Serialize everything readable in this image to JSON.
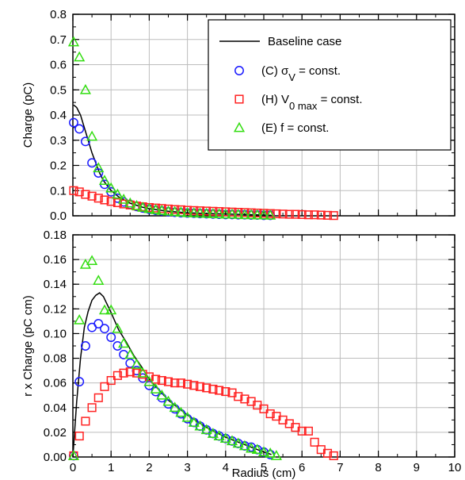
{
  "chart_data": [
    {
      "type": "scatter",
      "xlim": [
        0,
        10
      ],
      "ylim": [
        0,
        0.8
      ],
      "xlabel": "",
      "ylabel": "Charge (pC)",
      "x_ticks": [
        0,
        1,
        2,
        3,
        4,
        5,
        6,
        7,
        8,
        9,
        10
      ],
      "x_tick_labels": [
        "",
        "",
        "",
        "",
        "",
        "",
        "",
        "",
        "",
        "",
        ""
      ],
      "y_ticks": [
        0.0,
        0.1,
        0.2,
        0.3,
        0.4,
        0.5,
        0.6,
        0.7,
        0.8
      ],
      "y_tick_labels": [
        "0.0",
        "0.1",
        "0.2",
        "0.3",
        "0.4",
        "0.5",
        "0.6",
        "0.7",
        "0.8"
      ],
      "grid": true,
      "legend_position": "top-right",
      "legend": [
        {
          "marker": "line",
          "color": "#000000",
          "label": "Baseline case"
        },
        {
          "marker": "circle",
          "color": "#1a1aff",
          "label_prefix": "(C) σ",
          "label_sub": "V",
          "label_suffix": " = const."
        },
        {
          "marker": "square",
          "color": "#ff2222",
          "label_prefix": "(H) V",
          "label_sub": "0 max",
          "label_suffix": " = const."
        },
        {
          "marker": "triangle",
          "color": "#33dd11",
          "label_prefix": "(E) f = const.",
          "label_sub": "",
          "label_suffix": ""
        }
      ],
      "series": [
        {
          "name": "Baseline case",
          "marker": "line",
          "color": "#000000",
          "x": [
            0.02,
            0.1,
            0.2,
            0.3,
            0.4,
            0.5,
            0.6,
            0.7,
            0.8,
            1.0,
            1.2,
            1.5,
            1.8,
            2.0,
            2.5,
            3,
            3.5,
            4,
            4.5,
            5,
            5.2
          ],
          "y": [
            0.44,
            0.43,
            0.4,
            0.35,
            0.3,
            0.25,
            0.21,
            0.17,
            0.14,
            0.1,
            0.075,
            0.05,
            0.035,
            0.028,
            0.018,
            0.012,
            0.009,
            0.007,
            0.005,
            0.003,
            0.002
          ]
        },
        {
          "name": "(C) σV = const.",
          "marker": "circle",
          "color": "#1a1aff",
          "x": [
            0.02,
            0.17,
            0.33,
            0.5,
            0.67,
            0.83,
            1.0,
            1.17,
            1.33,
            1.5,
            1.67,
            1.83,
            2.0,
            2.17,
            2.33,
            2.5,
            2.67,
            2.83,
            3.0,
            3.17,
            3.33,
            3.5,
            3.67,
            3.83,
            4.0,
            4.17,
            4.33,
            4.5,
            4.67,
            4.83,
            5.0,
            5.17
          ],
          "y": [
            0.37,
            0.345,
            0.295,
            0.21,
            0.17,
            0.125,
            0.095,
            0.07,
            0.055,
            0.045,
            0.037,
            0.031,
            0.026,
            0.022,
            0.019,
            0.016,
            0.014,
            0.012,
            0.011,
            0.01,
            0.009,
            0.008,
            0.007,
            0.006,
            0.005,
            0.005,
            0.004,
            0.004,
            0.003,
            0.003,
            0.002,
            0.002
          ]
        },
        {
          "name": "(H) V0 max = const.",
          "marker": "square",
          "color": "#ff2222",
          "x": [
            0.02,
            0.17,
            0.33,
            0.5,
            0.67,
            0.83,
            1.0,
            1.17,
            1.33,
            1.5,
            1.67,
            1.83,
            2.0,
            2.17,
            2.33,
            2.5,
            2.67,
            2.83,
            3.0,
            3.17,
            3.33,
            3.5,
            3.67,
            3.83,
            4.0,
            4.17,
            4.33,
            4.5,
            4.67,
            4.83,
            5.0,
            5.17,
            5.33,
            5.5,
            5.67,
            5.83,
            6.0,
            6.17,
            6.33,
            6.5,
            6.67,
            6.83
          ],
          "y": [
            0.1,
            0.095,
            0.085,
            0.078,
            0.07,
            0.063,
            0.057,
            0.052,
            0.047,
            0.043,
            0.039,
            0.036,
            0.033,
            0.031,
            0.029,
            0.027,
            0.025,
            0.024,
            0.022,
            0.021,
            0.02,
            0.019,
            0.018,
            0.017,
            0.016,
            0.015,
            0.014,
            0.013,
            0.012,
            0.011,
            0.01,
            0.009,
            0.008,
            0.007,
            0.006,
            0.006,
            0.005,
            0.004,
            0.004,
            0.003,
            0.002,
            0.001
          ]
        },
        {
          "name": "(E) f = const.",
          "marker": "triangle",
          "color": "#33dd11",
          "x": [
            0.02,
            0.17,
            0.33,
            0.5,
            0.67,
            0.83,
            1.0,
            1.17,
            1.33,
            1.5,
            1.67,
            1.83,
            2.0,
            2.17,
            2.33,
            2.5,
            2.67,
            2.83,
            3.0,
            3.17,
            3.33,
            3.5,
            3.67,
            3.83,
            4.0,
            4.17,
            4.33,
            4.5,
            4.67,
            4.83,
            5.0,
            5.17
          ],
          "y": [
            0.69,
            0.63,
            0.5,
            0.315,
            0.19,
            0.14,
            0.11,
            0.085,
            0.065,
            0.05,
            0.04,
            0.033,
            0.028,
            0.024,
            0.021,
            0.018,
            0.016,
            0.014,
            0.012,
            0.011,
            0.01,
            0.009,
            0.008,
            0.007,
            0.006,
            0.006,
            0.005,
            0.004,
            0.004,
            0.003,
            0.003,
            0.002
          ]
        }
      ]
    },
    {
      "type": "scatter",
      "xlim": [
        0,
        10
      ],
      "ylim": [
        0,
        0.18
      ],
      "xlabel": "Radius (cm)",
      "ylabel": "r x Charge (pC cm)",
      "x_ticks": [
        0,
        1,
        2,
        3,
        4,
        5,
        6,
        7,
        8,
        9,
        10
      ],
      "x_tick_labels": [
        "0",
        "1",
        "2",
        "3",
        "4",
        "5",
        "6",
        "7",
        "8",
        "9",
        "10"
      ],
      "y_ticks": [
        0.0,
        0.02,
        0.04,
        0.06,
        0.08,
        0.1,
        0.12,
        0.14,
        0.16,
        0.18
      ],
      "y_tick_labels": [
        "0.00",
        "0.02",
        "0.04",
        "0.06",
        "0.08",
        "0.10",
        "0.12",
        "0.14",
        "0.16",
        "0.18"
      ],
      "grid": true,
      "series": [
        {
          "name": "Baseline case",
          "marker": "line",
          "color": "#000000",
          "x": [
            0,
            0.1,
            0.2,
            0.3,
            0.4,
            0.5,
            0.6,
            0.7,
            0.8,
            1.0,
            1.2,
            1.4,
            1.6,
            1.8,
            2.0,
            2.5,
            3.0,
            3.5,
            4.0,
            4.5,
            5.0,
            5.2
          ],
          "y": [
            0,
            0.045,
            0.08,
            0.105,
            0.118,
            0.127,
            0.131,
            0.133,
            0.13,
            0.117,
            0.103,
            0.093,
            0.082,
            0.073,
            0.063,
            0.046,
            0.034,
            0.024,
            0.016,
            0.01,
            0.004,
            0.002
          ]
        },
        {
          "name": "(C) σV = const.",
          "marker": "circle",
          "color": "#1a1aff",
          "x": [
            0.02,
            0.17,
            0.33,
            0.5,
            0.67,
            0.83,
            1.0,
            1.17,
            1.33,
            1.5,
            1.67,
            1.83,
            2.0,
            2.17,
            2.33,
            2.5,
            2.67,
            2.83,
            3.0,
            3.17,
            3.33,
            3.5,
            3.67,
            3.83,
            4.0,
            4.17,
            4.33,
            4.5,
            4.67,
            4.83,
            5.0,
            5.17
          ],
          "y": [
            0.001,
            0.061,
            0.09,
            0.105,
            0.108,
            0.104,
            0.097,
            0.09,
            0.083,
            0.076,
            0.07,
            0.064,
            0.058,
            0.053,
            0.048,
            0.043,
            0.039,
            0.035,
            0.031,
            0.028,
            0.025,
            0.022,
            0.019,
            0.017,
            0.015,
            0.013,
            0.011,
            0.009,
            0.008,
            0.006,
            0.004,
            0.002
          ]
        },
        {
          "name": "(H) V0 max = const.",
          "marker": "square",
          "color": "#ff2222",
          "x": [
            0.02,
            0.17,
            0.33,
            0.5,
            0.67,
            0.83,
            1.0,
            1.17,
            1.33,
            1.5,
            1.67,
            1.83,
            2.0,
            2.17,
            2.33,
            2.5,
            2.67,
            2.83,
            3.0,
            3.17,
            3.33,
            3.5,
            3.67,
            3.83,
            4.0,
            4.17,
            4.33,
            4.5,
            4.67,
            4.83,
            5.0,
            5.17,
            5.33,
            5.5,
            5.67,
            5.83,
            6.0,
            6.17,
            6.33,
            6.5,
            6.67,
            6.83
          ],
          "y": [
            0.001,
            0.017,
            0.029,
            0.04,
            0.048,
            0.057,
            0.062,
            0.066,
            0.068,
            0.069,
            0.068,
            0.067,
            0.065,
            0.063,
            0.062,
            0.061,
            0.06,
            0.06,
            0.059,
            0.058,
            0.057,
            0.056,
            0.055,
            0.054,
            0.053,
            0.052,
            0.049,
            0.047,
            0.045,
            0.042,
            0.039,
            0.035,
            0.033,
            0.03,
            0.027,
            0.024,
            0.021,
            0.021,
            0.012,
            0.006,
            0.003,
            0.001
          ]
        },
        {
          "name": "(E) f = const.",
          "marker": "triangle",
          "color": "#33dd11",
          "x": [
            0.02,
            0.17,
            0.33,
            0.5,
            0.67,
            0.83,
            1.0,
            1.17,
            1.33,
            1.5,
            1.67,
            1.83,
            2.0,
            2.17,
            2.33,
            2.5,
            2.67,
            2.83,
            3.0,
            3.17,
            3.33,
            3.5,
            3.67,
            3.83,
            4.0,
            4.17,
            4.33,
            4.5,
            4.67,
            4.83,
            5.0,
            5.17,
            5.33
          ],
          "y": [
            0.001,
            0.111,
            0.156,
            0.159,
            0.143,
            0.119,
            0.119,
            0.104,
            0.092,
            0.083,
            0.075,
            0.068,
            0.061,
            0.055,
            0.05,
            0.045,
            0.04,
            0.036,
            0.032,
            0.028,
            0.025,
            0.022,
            0.019,
            0.017,
            0.015,
            0.013,
            0.011,
            0.009,
            0.007,
            0.006,
            0.004,
            0.003,
            0.001
          ]
        }
      ]
    }
  ]
}
